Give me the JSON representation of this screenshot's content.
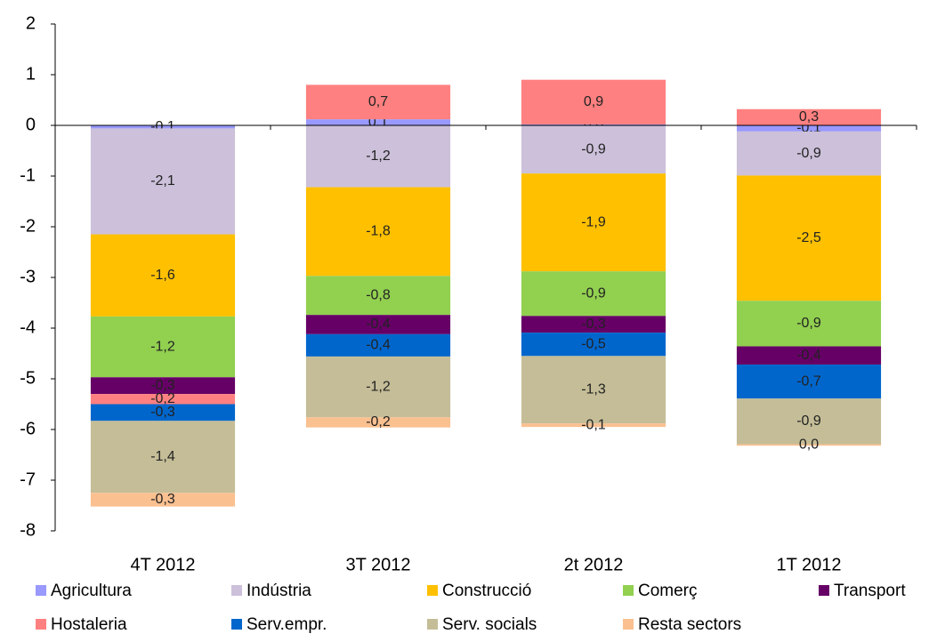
{
  "chart_data": {
    "type": "stacked-bar",
    "categories": [
      "4T 2012",
      "3T 2012",
      "2t 2012",
      "1T 2012"
    ],
    "ylim": [
      -8,
      2
    ],
    "yticks": [
      2,
      1,
      0,
      -1,
      -2,
      -3,
      -4,
      -5,
      -6,
      -7,
      -8
    ],
    "grid": false,
    "legend": "bottom",
    "series": [
      {
        "name": "Agricultura",
        "color": "#9999ff",
        "values": [
          -0.06,
          0.12,
          0.02,
          -0.12
        ],
        "value_labels": [
          "-0,1",
          "0,1",
          "0,0",
          "-0,1"
        ]
      },
      {
        "name": "Indústria",
        "color": "#ccc0da",
        "values": [
          -2.09,
          -1.22,
          -0.95,
          -0.87
        ],
        "value_labels": [
          "-2,1",
          "-1,2",
          "-0,9",
          "-0,9"
        ]
      },
      {
        "name": "Construcció",
        "color": "#ffc000",
        "values": [
          -1.62,
          -1.75,
          -1.93,
          -2.47
        ],
        "value_labels": [
          "-1,6",
          "-1,8",
          "-1,9",
          "-2,5"
        ]
      },
      {
        "name": "Comerç",
        "color": "#92d050",
        "values": [
          -1.2,
          -0.77,
          -0.88,
          -0.9
        ],
        "value_labels": [
          "-1,2",
          "-0,8",
          "-0,9",
          "-0,9"
        ]
      },
      {
        "name": "Transport",
        "color": "#660066",
        "values": [
          -0.33,
          -0.38,
          -0.33,
          -0.36
        ],
        "value_labels": [
          "-0,3",
          "-0,4",
          "-0,3",
          "-0,4"
        ]
      },
      {
        "name": "Hostaleria",
        "color": "#ff8080",
        "values": [
          -0.2,
          0.68,
          0.88,
          0.32
        ],
        "value_labels": [
          "-0,2",
          "0,7",
          "0,9",
          "0,3"
        ]
      },
      {
        "name": "Serv.empr.",
        "color": "#0066cc",
        "values": [
          -0.33,
          -0.44,
          -0.46,
          -0.67
        ],
        "value_labels": [
          "-0,3",
          "-0,4",
          "-0,5",
          "-0,7"
        ]
      },
      {
        "name": "Serv. socials",
        "color": "#c4bd97",
        "values": [
          -1.42,
          -1.2,
          -1.33,
          -0.9
        ],
        "value_labels": [
          "-1,4",
          "-1,2",
          "-1,3",
          "-0,9"
        ]
      },
      {
        "name": "Resta sectors",
        "color": "#fac090",
        "values": [
          -0.27,
          -0.2,
          -0.07,
          -0.03
        ],
        "value_labels": [
          "-0,3",
          "-0,2",
          "-0,1",
          "0,0"
        ]
      }
    ]
  }
}
